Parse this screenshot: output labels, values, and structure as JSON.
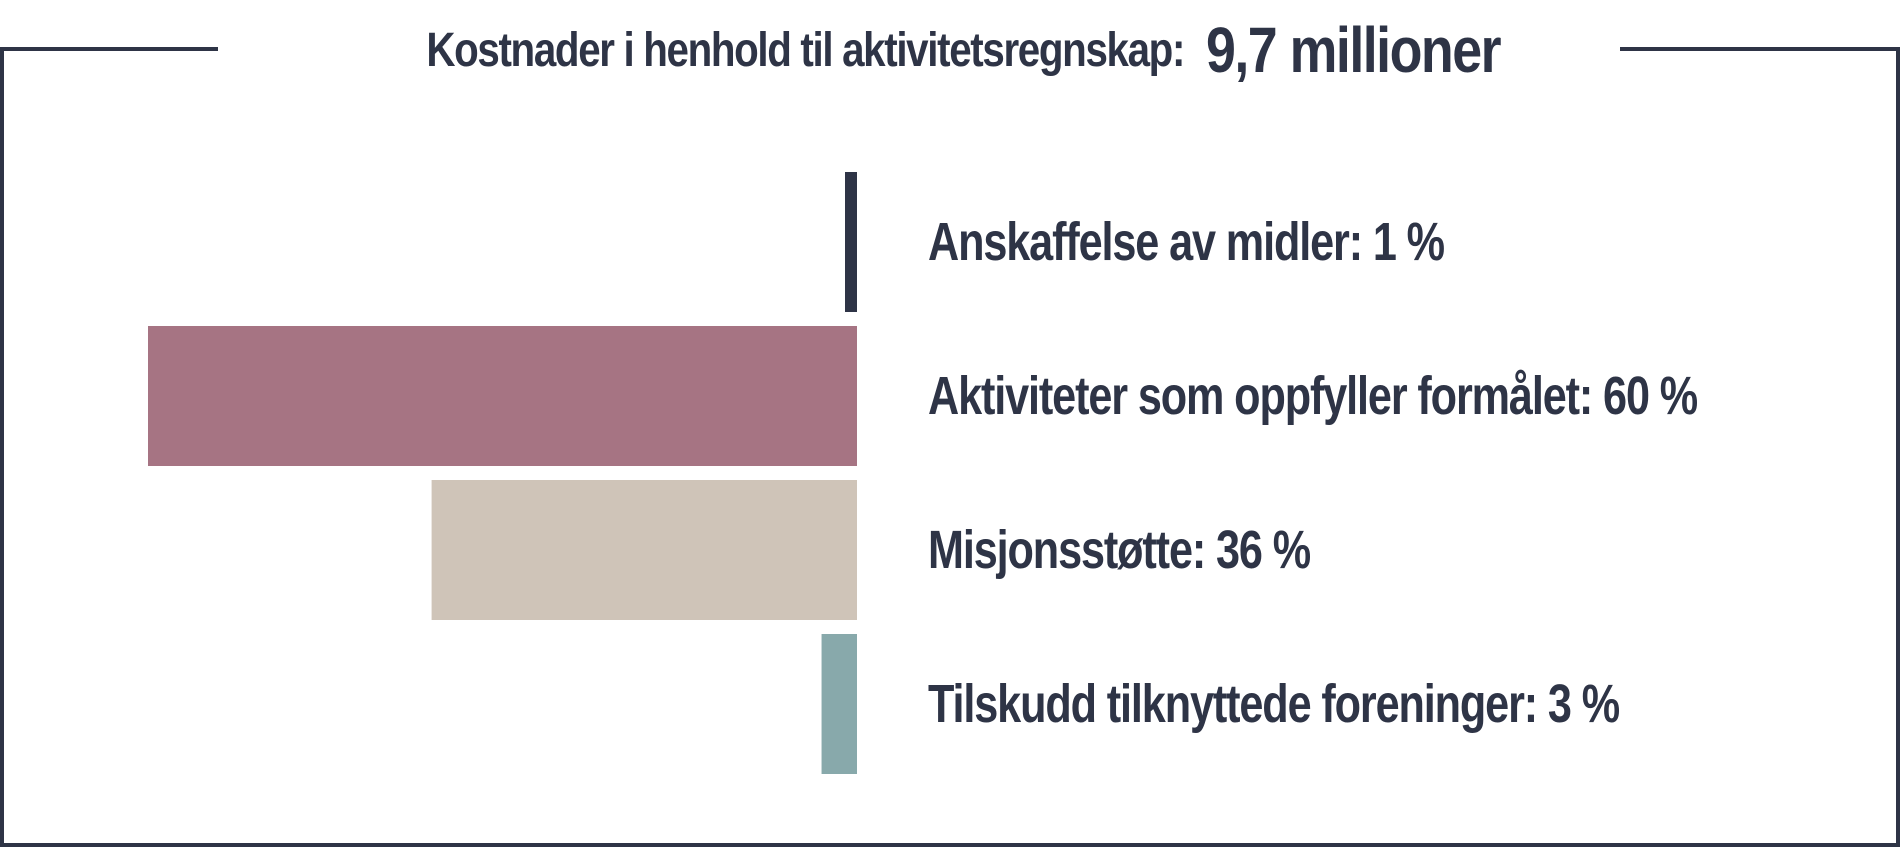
{
  "chart_data": {
    "type": "bar",
    "orientation": "horizontal",
    "title": "Kostnader i henhold til aktivitetsregnskap:",
    "total_label": "9,7 millioner",
    "unit": "%",
    "xlim": [
      0,
      60
    ],
    "categories": [
      "Anskaffelse av midler",
      "Aktiviteter som oppfyller formålet",
      "Misjonsstøtte",
      "Tilskudd tilknyttede foreninger"
    ],
    "values": [
      1,
      60,
      36,
      3
    ],
    "value_labels": [
      "1 %",
      "60 %",
      "36 %",
      "3 %"
    ],
    "colors": [
      "#2e3446",
      "#a67483",
      "#cfc4b8",
      "#88a9ab"
    ],
    "grid": false,
    "legend": "none"
  },
  "style": {
    "frame_color": "#2e3446",
    "text_color": "#2e3446"
  }
}
